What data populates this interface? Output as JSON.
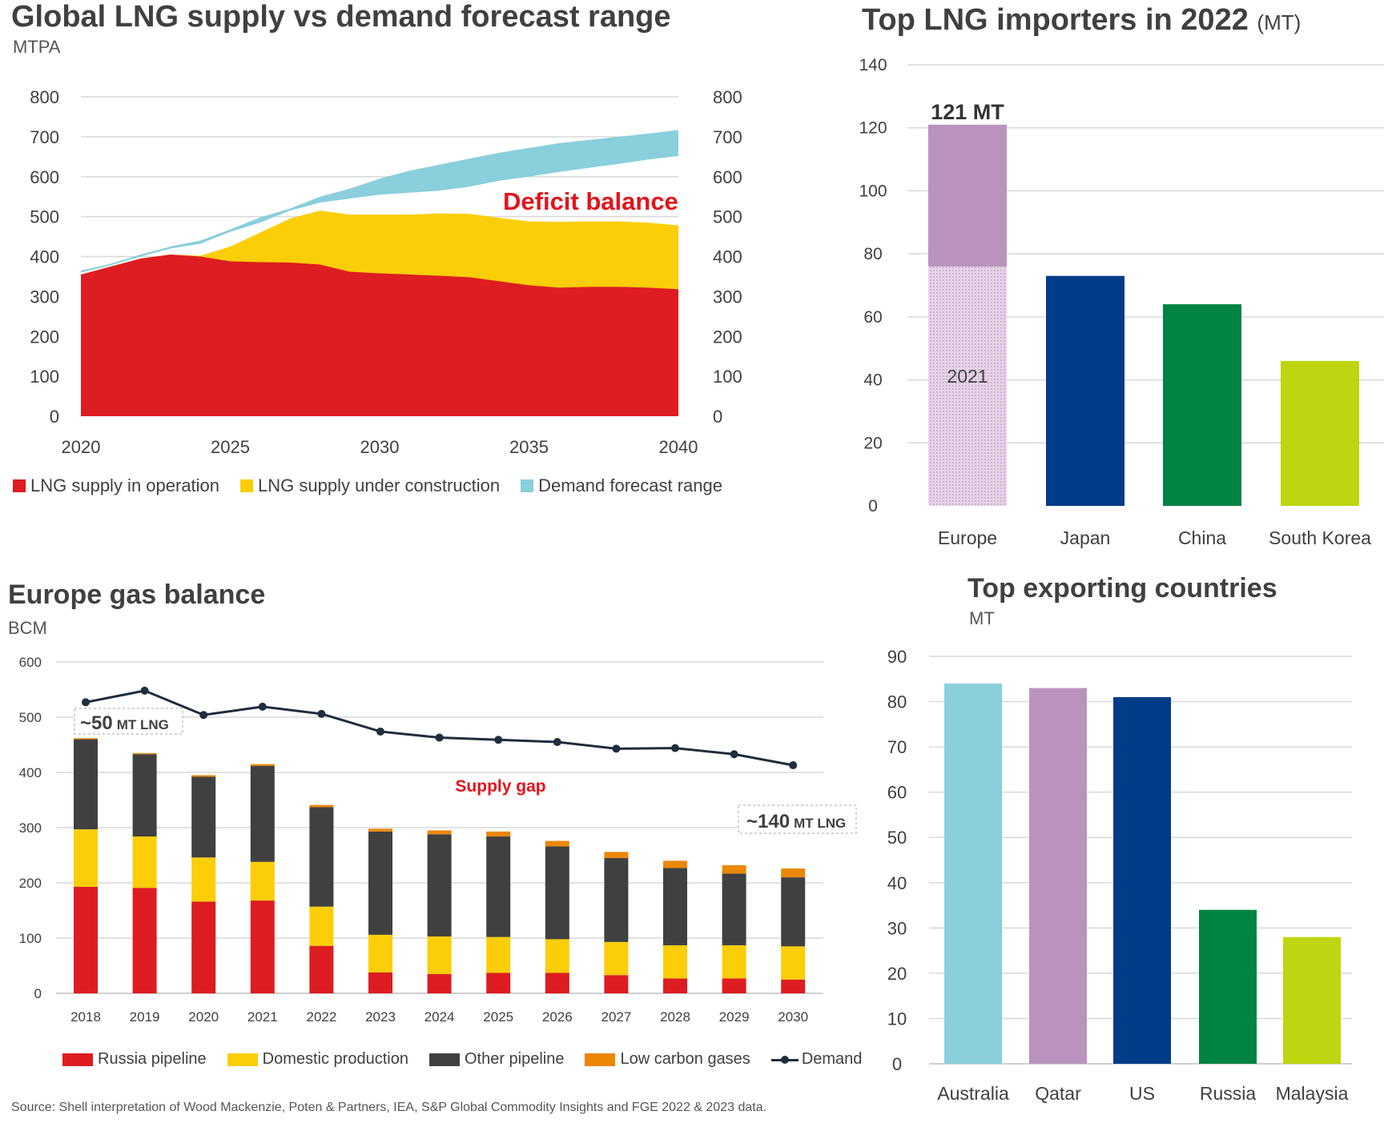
{
  "chart_data": [
    {
      "type": "area",
      "title": "Global LNG supply vs demand forecast range",
      "subtitle": "MTPA",
      "x_ticks": [
        "2020",
        "2025",
        "2030",
        "2035",
        "2040"
      ],
      "y_ticks": [
        "0",
        "100",
        "200",
        "300",
        "400",
        "500",
        "600",
        "700",
        "800"
      ],
      "ylim": [
        0,
        800
      ],
      "xlim": [
        2020,
        2040
      ],
      "x": [
        2020,
        2021,
        2022,
        2023,
        2024,
        2025,
        2026,
        2027,
        2028,
        2029,
        2030,
        2031,
        2032,
        2033,
        2034,
        2035,
        2036,
        2037,
        2038,
        2039,
        2040
      ],
      "series": [
        {
          "name": "LNG supply in operation",
          "color": "#dd1d21",
          "values": [
            355,
            375,
            395,
            405,
            400,
            388,
            386,
            385,
            380,
            362,
            358,
            355,
            352,
            348,
            338,
            328,
            322,
            324,
            324,
            322,
            318
          ]
        },
        {
          "name": "LNG supply under construction",
          "color": "#fbce07",
          "values": [
            355,
            375,
            395,
            405,
            402,
            425,
            460,
            495,
            515,
            505,
            505,
            505,
            508,
            507,
            497,
            488,
            487,
            488,
            488,
            485,
            478
          ]
        },
        {
          "name": "Demand forecast range",
          "color": "#89cfdc",
          "low": [
            360,
            378,
            400,
            420,
            432,
            462,
            485,
            515,
            535,
            545,
            555,
            560,
            565,
            575,
            590,
            600,
            612,
            622,
            632,
            643,
            652
          ],
          "high": [
            365,
            382,
            405,
            425,
            440,
            468,
            498,
            520,
            550,
            570,
            595,
            615,
            630,
            645,
            660,
            672,
            684,
            692,
            700,
            708,
            717
          ]
        }
      ],
      "annotation": "Deficit balance",
      "annotation_color": "#e3141b"
    },
    {
      "type": "bar",
      "title": "Top LNG importers in 2022",
      "title_unit": "(MT)",
      "categories": [
        "Europe",
        "Japan",
        "China",
        "South Korea"
      ],
      "values": [
        121,
        73,
        64,
        46
      ],
      "colors": [
        "#b993bd",
        "#003c88",
        "#008443",
        "#bed50f"
      ],
      "europe_2021_value": 76,
      "europe_2021_label": "2021",
      "top_label": "121 MT",
      "y_ticks": [
        "0",
        "20",
        "40",
        "60",
        "80",
        "100",
        "120",
        "140"
      ],
      "ylim": [
        0,
        140
      ]
    },
    {
      "type": "bar",
      "title": "Europe gas balance",
      "subtitle": "BCM",
      "categories": [
        "2018",
        "2019",
        "2020",
        "2021",
        "2022",
        "2023",
        "2024",
        "2025",
        "2026",
        "2027",
        "2028",
        "2029",
        "2030"
      ],
      "series": [
        {
          "name": "Russia pipeline",
          "color": "#dd1d21",
          "values": [
            193,
            191,
            166,
            168,
            86,
            38,
            35,
            37,
            37,
            33,
            27,
            27,
            25
          ]
        },
        {
          "name": "Domestic production",
          "color": "#fbce07",
          "values": [
            104,
            93,
            80,
            70,
            71,
            68,
            68,
            65,
            61,
            60,
            60,
            60,
            60
          ]
        },
        {
          "name": "Other pipeline",
          "color": "#404040",
          "values": [
            163,
            149,
            146,
            174,
            180,
            187,
            185,
            182,
            168,
            152,
            140,
            130,
            125
          ]
        },
        {
          "name": "Low carbon gases",
          "color": "#eb8705",
          "values": [
            2,
            2,
            3,
            3,
            4,
            5,
            7,
            9,
            10,
            11,
            13,
            15,
            16
          ]
        }
      ],
      "demand": {
        "name": "Demand",
        "color": "#1f2d3d",
        "values": [
          527,
          548,
          504,
          519,
          506,
          474,
          463,
          459,
          455,
          443,
          444,
          433,
          413
        ]
      },
      "y_ticks": [
        "0",
        "100",
        "200",
        "300",
        "400",
        "500",
        "600"
      ],
      "ylim": [
        0,
        600
      ],
      "annotations": {
        "mt50_big": "~50",
        "mt50_small": "MT LNG",
        "mt140_big": "~140",
        "mt140_small": "MT LNG",
        "supply_gap": "Supply gap"
      }
    },
    {
      "type": "bar",
      "title": "Top exporting countries",
      "subtitle": "MT",
      "categories": [
        "Australia",
        "Qatar",
        "US",
        "Russia",
        "Malaysia"
      ],
      "values": [
        84,
        83,
        81,
        34,
        28
      ],
      "colors": [
        "#89cfdc",
        "#b993bd",
        "#003c88",
        "#008443",
        "#bed50f"
      ],
      "y_ticks": [
        "0",
        "10",
        "20",
        "30",
        "40",
        "50",
        "60",
        "70",
        "80",
        "90"
      ],
      "ylim": [
        0,
        90
      ]
    }
  ],
  "source": "Source: Shell interpretation of Wood Mackenzie, Poten & Partners, IEA, S&P Global Commodity Insights and FGE 2022 & 2023 data."
}
